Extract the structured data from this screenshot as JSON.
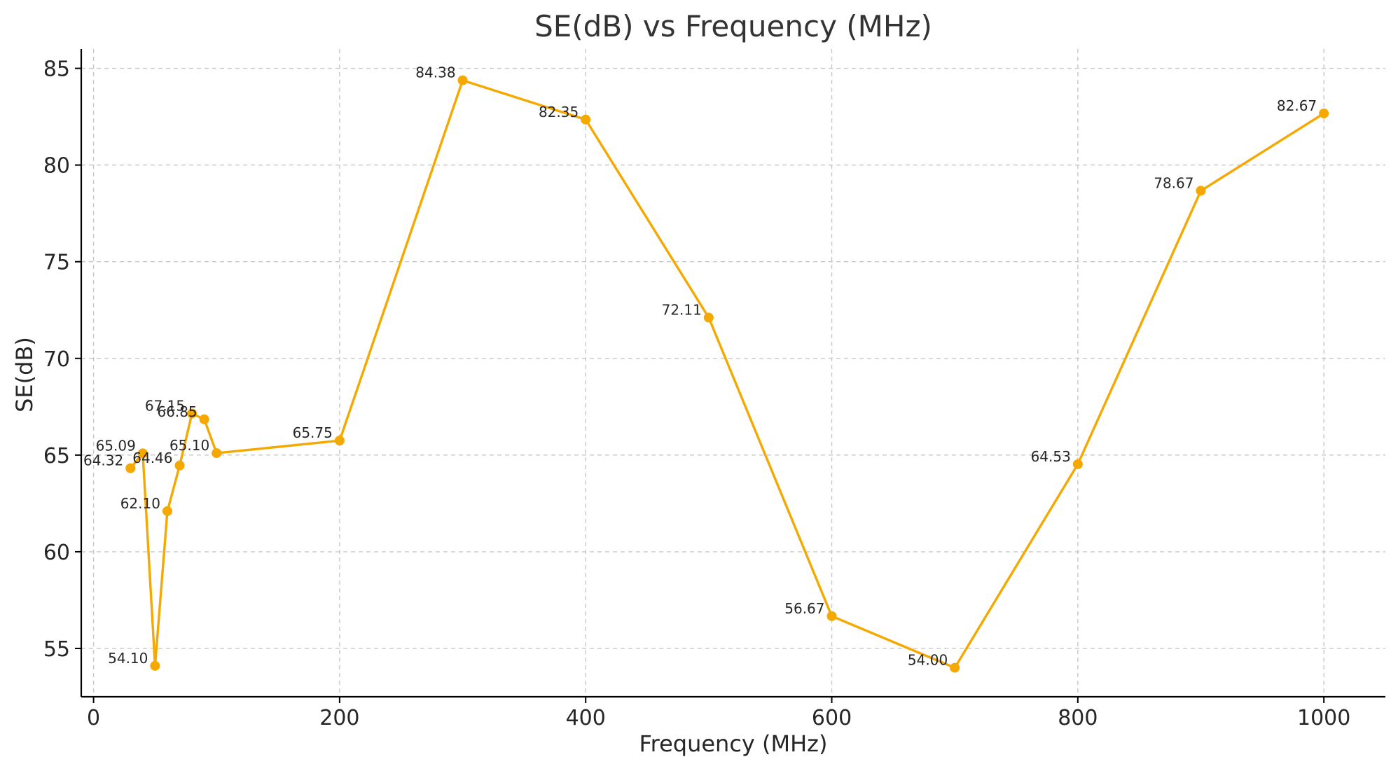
{
  "chart_data": {
    "type": "line",
    "title": "SE(dB) vs Frequency (MHz)",
    "xlabel": "Frequency (MHz)",
    "ylabel": "SE(dB)",
    "xlim": [
      -10,
      1050
    ],
    "ylim": [
      52.5,
      86
    ],
    "x_ticks": [
      0,
      200,
      400,
      600,
      800,
      1000
    ],
    "y_ticks": [
      55,
      60,
      65,
      70,
      75,
      80,
      85
    ],
    "grid": true,
    "series": [
      {
        "name": "SE(dB)",
        "color": "#F5A800",
        "x": [
          30,
          40,
          50,
          60,
          70,
          80,
          90,
          100,
          200,
          300,
          400,
          500,
          600,
          700,
          800,
          900,
          1000
        ],
        "values": [
          64.32,
          65.09,
          54.1,
          62.1,
          64.46,
          67.15,
          66.85,
          65.1,
          65.75,
          84.38,
          82.35,
          72.11,
          56.67,
          54.0,
          64.53,
          78.67,
          82.67
        ],
        "labels": [
          "64.32",
          "65.09",
          "54.10",
          "62.10",
          "64.46",
          "67.15",
          "66.85",
          "65.10",
          "65.75",
          "84.38",
          "82.35",
          "72.11",
          "56.67",
          "54.00",
          "64.53",
          "78.67",
          "82.67"
        ]
      }
    ]
  }
}
